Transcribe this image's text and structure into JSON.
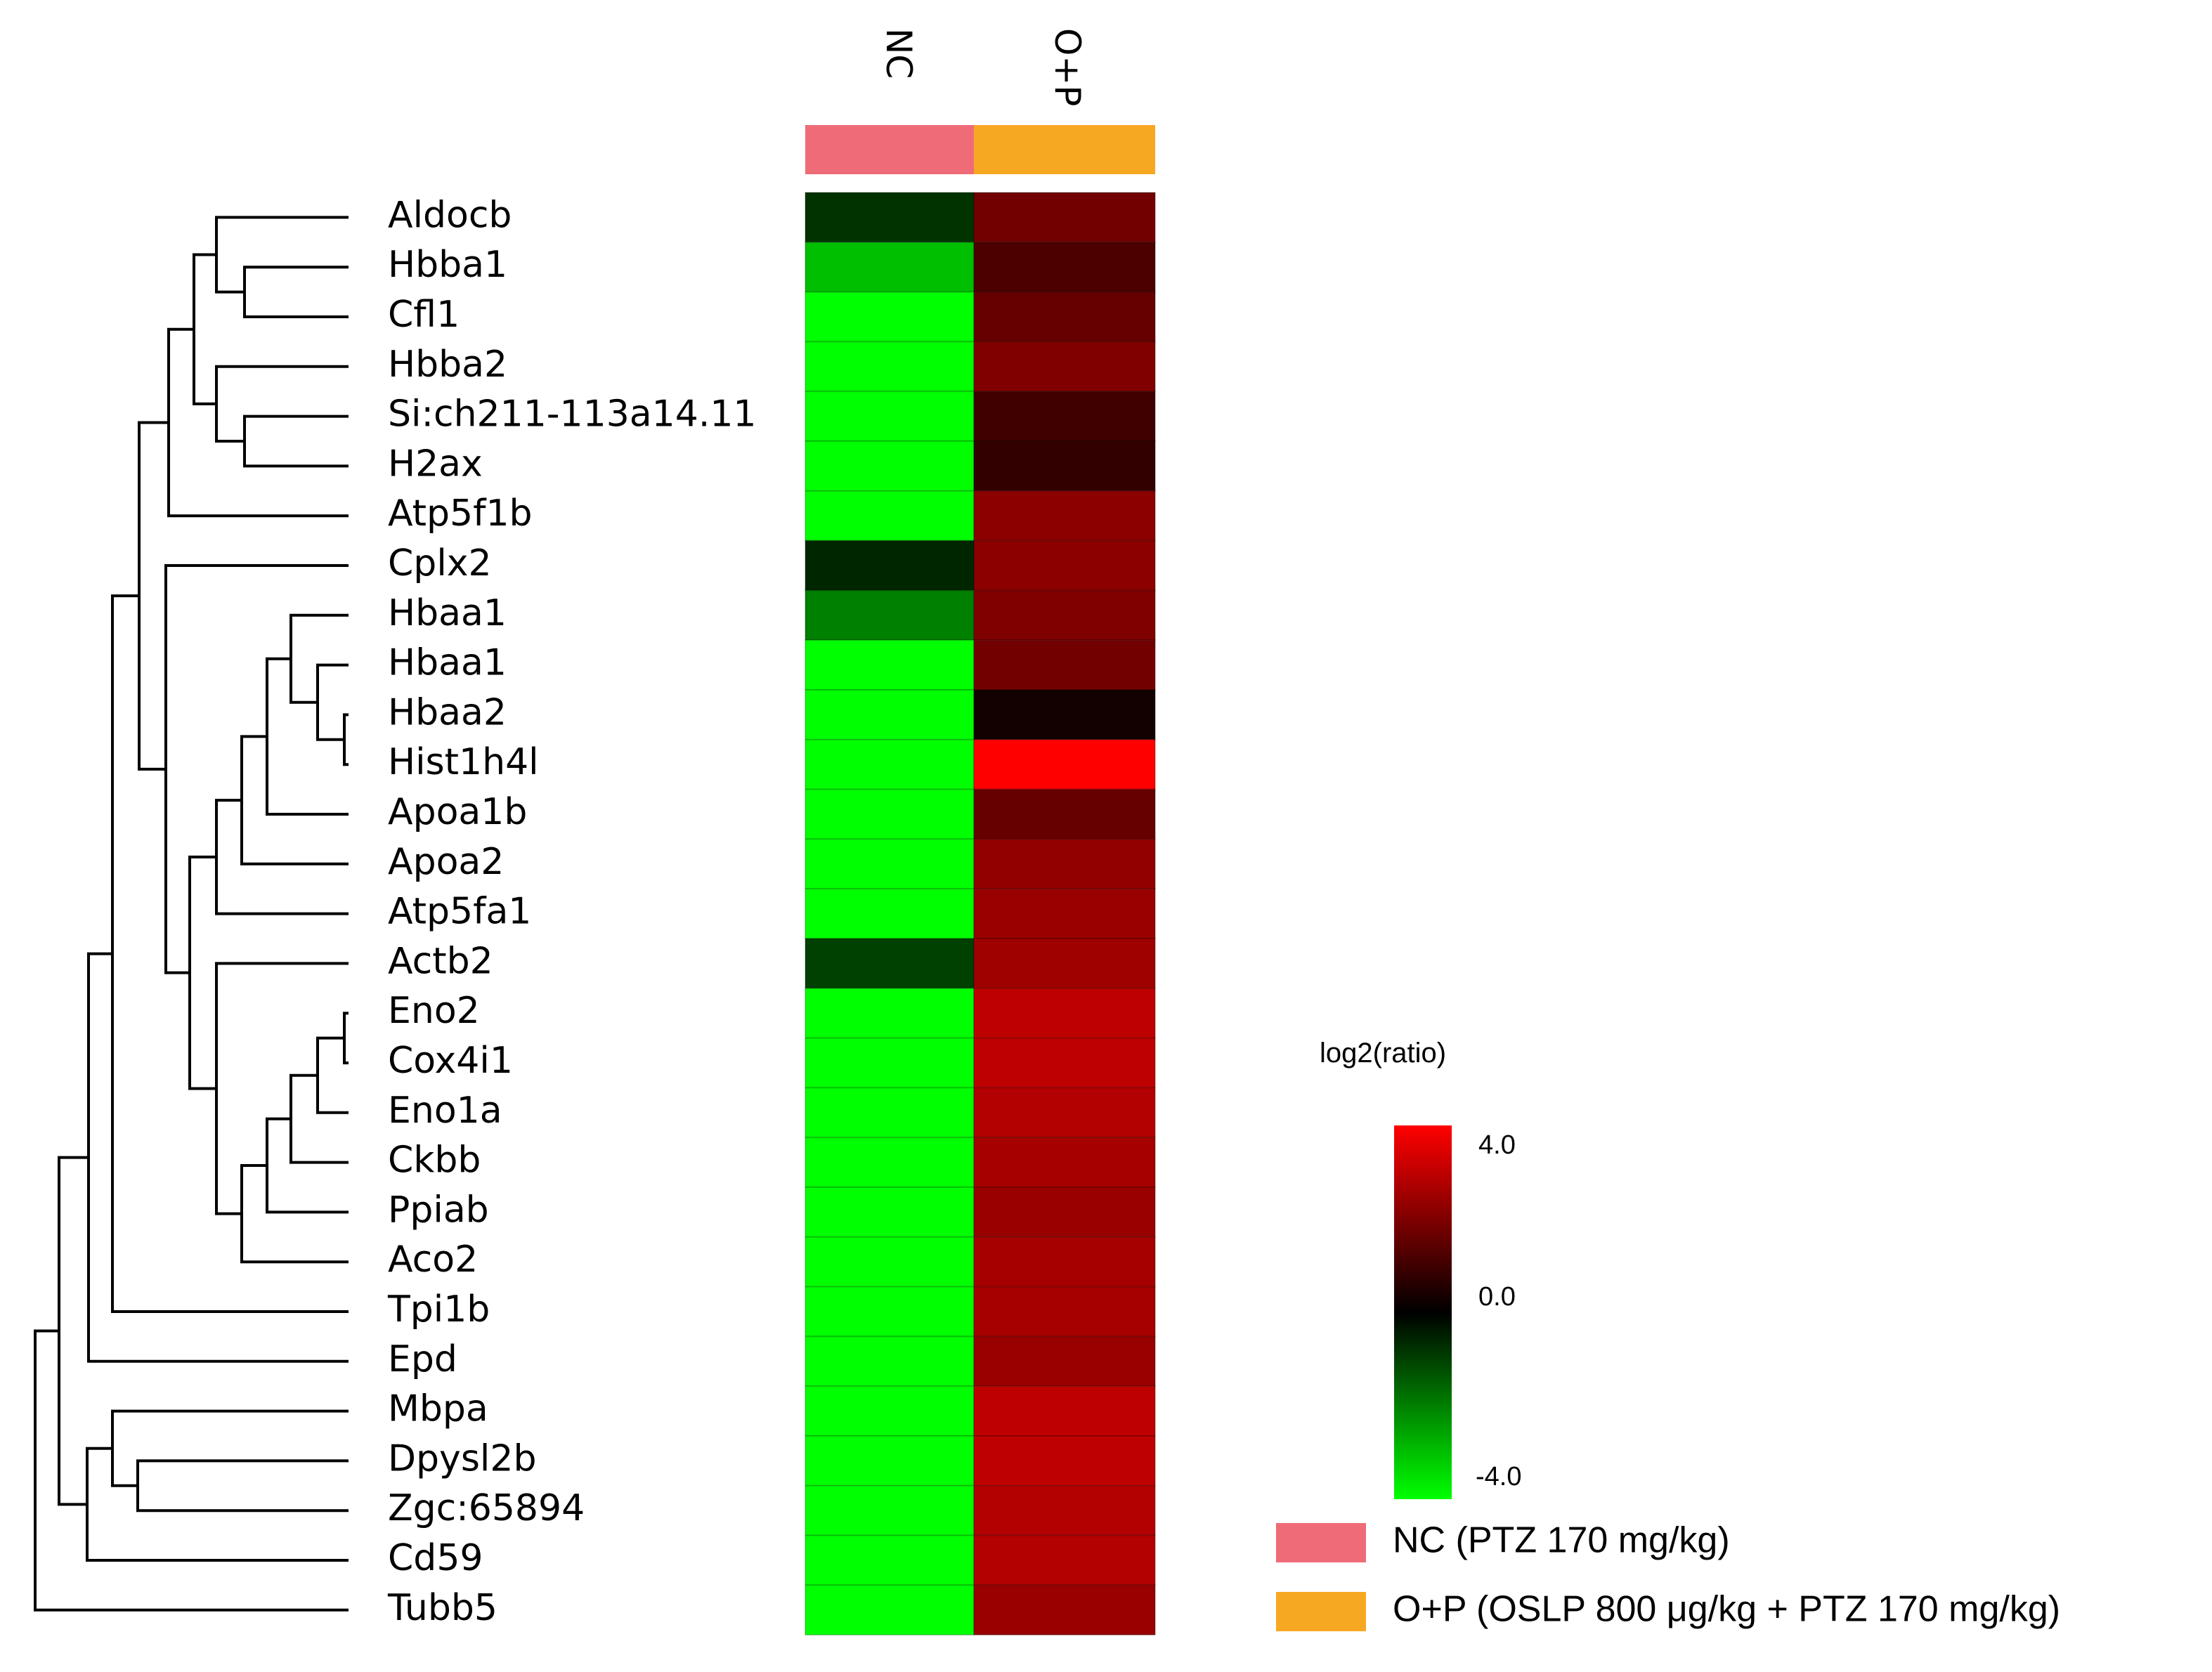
{
  "chart_data": {
    "type": "heatmap",
    "columns": [
      "NC",
      "O+P"
    ],
    "column_colors": [
      "#f06b78",
      "#f7a823"
    ],
    "rows": [
      "Aldocb",
      "Hbba1",
      "Cfl1",
      "Hbba2",
      "Si:ch211-113a14.11",
      "H2ax",
      "Atp5f1b",
      "Cplx2",
      "Hbaa1",
      "Hbaa1",
      "Hbaa2",
      "Hist1h4l",
      "Apoa1b",
      "Apoa2",
      "Atp5fa1",
      "Actb2",
      "Eno2",
      "Cox4i1",
      "Eno1a",
      "Ckbb",
      "Ppiab",
      "Aco2",
      "Tpi1b",
      "Epd",
      "Mbpa",
      "Dpysl2b",
      "Zgc:65894",
      "Cd59",
      "Tubb5"
    ],
    "values": [
      [
        -0.8,
        1.8
      ],
      [
        -3.0,
        1.2
      ],
      [
        -4.0,
        1.6
      ],
      [
        -4.0,
        2.0
      ],
      [
        -4.0,
        1.0
      ],
      [
        -4.0,
        0.8
      ],
      [
        -4.0,
        2.2
      ],
      [
        -0.6,
        2.2
      ],
      [
        -2.0,
        2.0
      ],
      [
        -4.0,
        1.8
      ],
      [
        -4.0,
        0.3
      ],
      [
        -4.0,
        4.0
      ],
      [
        -4.0,
        1.6
      ],
      [
        -4.0,
        2.3
      ],
      [
        -4.0,
        2.4
      ],
      [
        -1.0,
        2.5
      ],
      [
        -4.0,
        3.0
      ],
      [
        -4.0,
        3.0
      ],
      [
        -4.0,
        2.8
      ],
      [
        -4.0,
        2.6
      ],
      [
        -4.0,
        2.4
      ],
      [
        -4.0,
        2.6
      ],
      [
        -4.0,
        2.6
      ],
      [
        -4.0,
        2.4
      ],
      [
        -4.0,
        3.0
      ],
      [
        -4.0,
        3.0
      ],
      [
        -4.0,
        2.8
      ],
      [
        -4.0,
        2.8
      ],
      [
        -4.0,
        2.4
      ]
    ],
    "color_scale": {
      "title": "log2(ratio)",
      "min": -4.0,
      "mid": 0.0,
      "max": 4.0,
      "tick_labels": [
        "4.0",
        "0.0",
        "-4.0"
      ],
      "min_color": "#00ff00",
      "mid_color": "#000000",
      "max_color": "#ff0000"
    },
    "legend": [
      {
        "label": "NC (PTZ 170 mg/kg)",
        "color": "#f06b78"
      },
      {
        "label": "O+P (OSLP 800 μg/kg + PTZ 170 mg/kg)",
        "color": "#f7a823"
      }
    ],
    "dendrogram_linkage": "rows 0-28; clusters built hierarchically (left side)"
  }
}
